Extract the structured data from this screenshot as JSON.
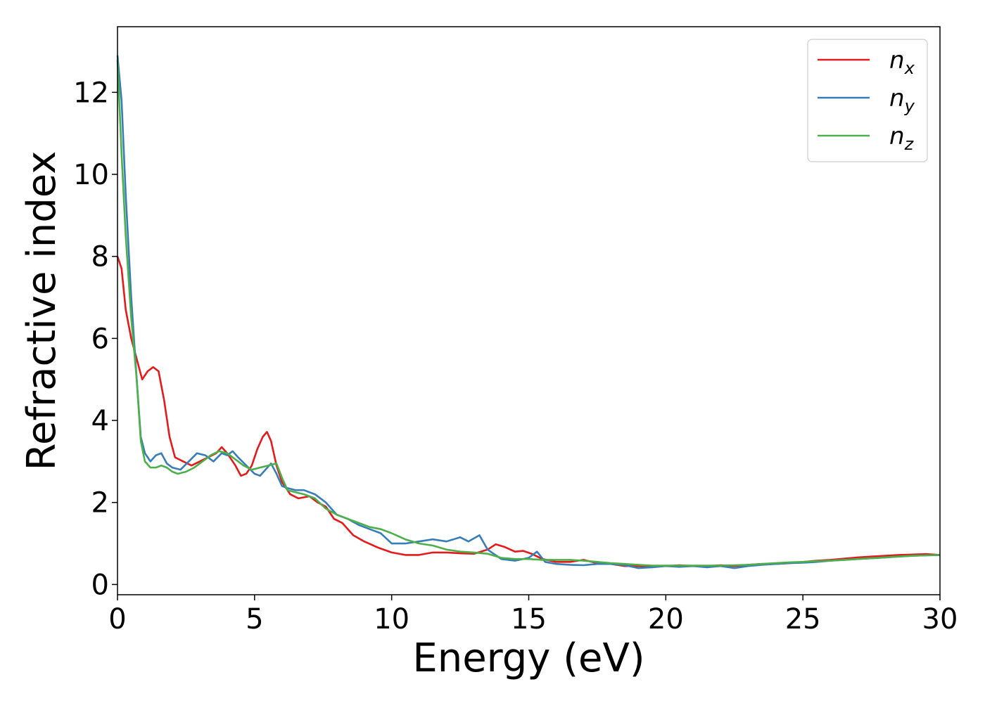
{
  "chart_data": {
    "type": "line",
    "xlabel": "Energy (eV)",
    "ylabel": "Refractive index",
    "xlim": [
      0,
      30
    ],
    "ylim": [
      -0.25,
      13.6
    ],
    "xticks": [
      0,
      5,
      10,
      15,
      20,
      25,
      30
    ],
    "yticks": [
      0,
      2,
      4,
      6,
      8,
      10,
      12
    ],
    "xtick_labels": [
      "0",
      "5",
      "10",
      "15",
      "20",
      "25",
      "30"
    ],
    "ytick_labels": [
      "0",
      "2",
      "4",
      "6",
      "8",
      "10",
      "12"
    ],
    "grid": false,
    "legend_position": "top-right",
    "series": [
      {
        "name": "n_x",
        "legend_base": "n",
        "legend_sub": "x",
        "color": "#e41a1c",
        "points": [
          [
            0,
            8.0
          ],
          [
            0.15,
            7.7
          ],
          [
            0.3,
            6.7
          ],
          [
            0.5,
            6.0
          ],
          [
            0.7,
            5.5
          ],
          [
            0.9,
            5.0
          ],
          [
            1.1,
            5.2
          ],
          [
            1.3,
            5.3
          ],
          [
            1.5,
            5.2
          ],
          [
            1.7,
            4.5
          ],
          [
            1.9,
            3.6
          ],
          [
            2.1,
            3.1
          ],
          [
            2.4,
            3.0
          ],
          [
            2.7,
            2.9
          ],
          [
            3.0,
            3.0
          ],
          [
            3.3,
            3.1
          ],
          [
            3.6,
            3.2
          ],
          [
            3.8,
            3.35
          ],
          [
            4.0,
            3.2
          ],
          [
            4.3,
            2.9
          ],
          [
            4.5,
            2.65
          ],
          [
            4.7,
            2.7
          ],
          [
            4.9,
            2.9
          ],
          [
            5.1,
            3.3
          ],
          [
            5.3,
            3.6
          ],
          [
            5.45,
            3.72
          ],
          [
            5.6,
            3.5
          ],
          [
            5.8,
            2.9
          ],
          [
            6.0,
            2.5
          ],
          [
            6.3,
            2.2
          ],
          [
            6.6,
            2.1
          ],
          [
            7.0,
            2.15
          ],
          [
            7.3,
            2.0
          ],
          [
            7.6,
            1.9
          ],
          [
            7.9,
            1.6
          ],
          [
            8.2,
            1.5
          ],
          [
            8.6,
            1.2
          ],
          [
            9.0,
            1.05
          ],
          [
            9.5,
            0.9
          ],
          [
            10.0,
            0.78
          ],
          [
            10.5,
            0.72
          ],
          [
            11.0,
            0.72
          ],
          [
            11.5,
            0.78
          ],
          [
            12.0,
            0.78
          ],
          [
            12.5,
            0.76
          ],
          [
            13.0,
            0.75
          ],
          [
            13.5,
            0.85
          ],
          [
            13.8,
            0.98
          ],
          [
            14.1,
            0.92
          ],
          [
            14.5,
            0.8
          ],
          [
            14.8,
            0.82
          ],
          [
            15.1,
            0.75
          ],
          [
            15.5,
            0.62
          ],
          [
            16.0,
            0.55
          ],
          [
            16.5,
            0.55
          ],
          [
            17.0,
            0.6
          ],
          [
            17.5,
            0.52
          ],
          [
            18.0,
            0.5
          ],
          [
            18.5,
            0.45
          ],
          [
            19.0,
            0.45
          ],
          [
            19.5,
            0.45
          ],
          [
            20.0,
            0.45
          ],
          [
            20.5,
            0.47
          ],
          [
            21.0,
            0.45
          ],
          [
            21.5,
            0.45
          ],
          [
            22.0,
            0.47
          ],
          [
            22.5,
            0.45
          ],
          [
            23.0,
            0.48
          ],
          [
            23.5,
            0.5
          ],
          [
            24.0,
            0.5
          ],
          [
            24.5,
            0.52
          ],
          [
            25.0,
            0.55
          ],
          [
            25.5,
            0.58
          ],
          [
            26.0,
            0.6
          ],
          [
            26.5,
            0.63
          ],
          [
            27.0,
            0.66
          ],
          [
            27.5,
            0.68
          ],
          [
            28.0,
            0.7
          ],
          [
            28.5,
            0.72
          ],
          [
            29.0,
            0.73
          ],
          [
            29.5,
            0.74
          ],
          [
            30.0,
            0.72
          ]
        ]
      },
      {
        "name": "n_y",
        "legend_base": "n",
        "legend_sub": "y",
        "color": "#377eb8",
        "points": [
          [
            0,
            12.9
          ],
          [
            0.15,
            11.8
          ],
          [
            0.3,
            9.5
          ],
          [
            0.5,
            7.0
          ],
          [
            0.7,
            5.0
          ],
          [
            0.85,
            3.6
          ],
          [
            1.0,
            3.2
          ],
          [
            1.2,
            3.0
          ],
          [
            1.4,
            3.15
          ],
          [
            1.6,
            3.2
          ],
          [
            1.8,
            2.95
          ],
          [
            2.0,
            2.85
          ],
          [
            2.3,
            2.8
          ],
          [
            2.6,
            3.0
          ],
          [
            2.9,
            3.2
          ],
          [
            3.2,
            3.15
          ],
          [
            3.5,
            3.0
          ],
          [
            3.8,
            3.2
          ],
          [
            4.0,
            3.15
          ],
          [
            4.2,
            3.25
          ],
          [
            4.4,
            3.1
          ],
          [
            4.7,
            2.9
          ],
          [
            5.0,
            2.7
          ],
          [
            5.2,
            2.65
          ],
          [
            5.4,
            2.8
          ],
          [
            5.6,
            2.95
          ],
          [
            5.8,
            2.7
          ],
          [
            6.0,
            2.4
          ],
          [
            6.2,
            2.35
          ],
          [
            6.5,
            2.3
          ],
          [
            6.8,
            2.3
          ],
          [
            7.2,
            2.2
          ],
          [
            7.6,
            2.0
          ],
          [
            8.0,
            1.7
          ],
          [
            8.4,
            1.6
          ],
          [
            8.8,
            1.45
          ],
          [
            9.2,
            1.35
          ],
          [
            9.6,
            1.25
          ],
          [
            10.0,
            1.0
          ],
          [
            10.5,
            1.0
          ],
          [
            11.0,
            1.05
          ],
          [
            11.5,
            1.1
          ],
          [
            12.0,
            1.05
          ],
          [
            12.5,
            1.15
          ],
          [
            12.8,
            1.05
          ],
          [
            13.2,
            1.2
          ],
          [
            13.5,
            0.85
          ],
          [
            14.0,
            0.62
          ],
          [
            14.5,
            0.58
          ],
          [
            15.0,
            0.65
          ],
          [
            15.3,
            0.8
          ],
          [
            15.6,
            0.55
          ],
          [
            16.0,
            0.5
          ],
          [
            16.5,
            0.48
          ],
          [
            17.0,
            0.47
          ],
          [
            17.5,
            0.5
          ],
          [
            18.0,
            0.5
          ],
          [
            18.5,
            0.47
          ],
          [
            19.0,
            0.4
          ],
          [
            19.5,
            0.42
          ],
          [
            20.0,
            0.45
          ],
          [
            20.5,
            0.43
          ],
          [
            21.0,
            0.45
          ],
          [
            21.5,
            0.42
          ],
          [
            22.0,
            0.45
          ],
          [
            22.5,
            0.4
          ],
          [
            23.0,
            0.45
          ],
          [
            23.5,
            0.48
          ],
          [
            24.0,
            0.5
          ],
          [
            24.5,
            0.52
          ],
          [
            25.0,
            0.53
          ],
          [
            25.5,
            0.55
          ],
          [
            26.0,
            0.58
          ],
          [
            26.5,
            0.6
          ],
          [
            27.0,
            0.62
          ],
          [
            27.5,
            0.64
          ],
          [
            28.0,
            0.66
          ],
          [
            28.5,
            0.68
          ],
          [
            29.0,
            0.7
          ],
          [
            29.5,
            0.71
          ],
          [
            30.0,
            0.72
          ]
        ]
      },
      {
        "name": "n_z",
        "legend_base": "n",
        "legend_sub": "z",
        "color": "#4daf4a",
        "points": [
          [
            0,
            12.8
          ],
          [
            0.15,
            10.5
          ],
          [
            0.3,
            8.5
          ],
          [
            0.5,
            6.5
          ],
          [
            0.7,
            5.0
          ],
          [
            0.85,
            3.5
          ],
          [
            1.0,
            3.0
          ],
          [
            1.2,
            2.85
          ],
          [
            1.4,
            2.85
          ],
          [
            1.6,
            2.9
          ],
          [
            1.8,
            2.85
          ],
          [
            2.0,
            2.75
          ],
          [
            2.2,
            2.7
          ],
          [
            2.5,
            2.75
          ],
          [
            2.8,
            2.85
          ],
          [
            3.1,
            3.0
          ],
          [
            3.4,
            3.15
          ],
          [
            3.7,
            3.25
          ],
          [
            4.0,
            3.2
          ],
          [
            4.3,
            3.05
          ],
          [
            4.6,
            2.9
          ],
          [
            4.9,
            2.8
          ],
          [
            5.2,
            2.85
          ],
          [
            5.5,
            2.9
          ],
          [
            5.8,
            2.95
          ],
          [
            6.0,
            2.6
          ],
          [
            6.2,
            2.3
          ],
          [
            6.5,
            2.25
          ],
          [
            6.8,
            2.2
          ],
          [
            7.2,
            2.1
          ],
          [
            7.6,
            1.85
          ],
          [
            8.0,
            1.7
          ],
          [
            8.4,
            1.6
          ],
          [
            8.8,
            1.5
          ],
          [
            9.2,
            1.4
          ],
          [
            9.6,
            1.35
          ],
          [
            10.0,
            1.25
          ],
          [
            10.5,
            1.1
          ],
          [
            11.0,
            1.0
          ],
          [
            11.5,
            0.95
          ],
          [
            12.0,
            0.85
          ],
          [
            12.5,
            0.8
          ],
          [
            13.0,
            0.78
          ],
          [
            13.5,
            0.75
          ],
          [
            14.0,
            0.65
          ],
          [
            14.5,
            0.62
          ],
          [
            15.0,
            0.62
          ],
          [
            15.5,
            0.6
          ],
          [
            16.0,
            0.6
          ],
          [
            16.5,
            0.6
          ],
          [
            17.0,
            0.58
          ],
          [
            17.5,
            0.55
          ],
          [
            18.0,
            0.52
          ],
          [
            18.5,
            0.5
          ],
          [
            19.0,
            0.48
          ],
          [
            19.5,
            0.46
          ],
          [
            20.0,
            0.46
          ],
          [
            20.5,
            0.46
          ],
          [
            21.0,
            0.46
          ],
          [
            21.5,
            0.46
          ],
          [
            22.0,
            0.46
          ],
          [
            22.5,
            0.47
          ],
          [
            23.0,
            0.48
          ],
          [
            23.5,
            0.5
          ],
          [
            24.0,
            0.52
          ],
          [
            24.5,
            0.54
          ],
          [
            25.0,
            0.55
          ],
          [
            25.5,
            0.57
          ],
          [
            26.0,
            0.58
          ],
          [
            26.5,
            0.6
          ],
          [
            27.0,
            0.62
          ],
          [
            27.5,
            0.64
          ],
          [
            28.0,
            0.66
          ],
          [
            28.5,
            0.68
          ],
          [
            29.0,
            0.7
          ],
          [
            29.5,
            0.71
          ],
          [
            30.0,
            0.72
          ]
        ]
      }
    ]
  }
}
